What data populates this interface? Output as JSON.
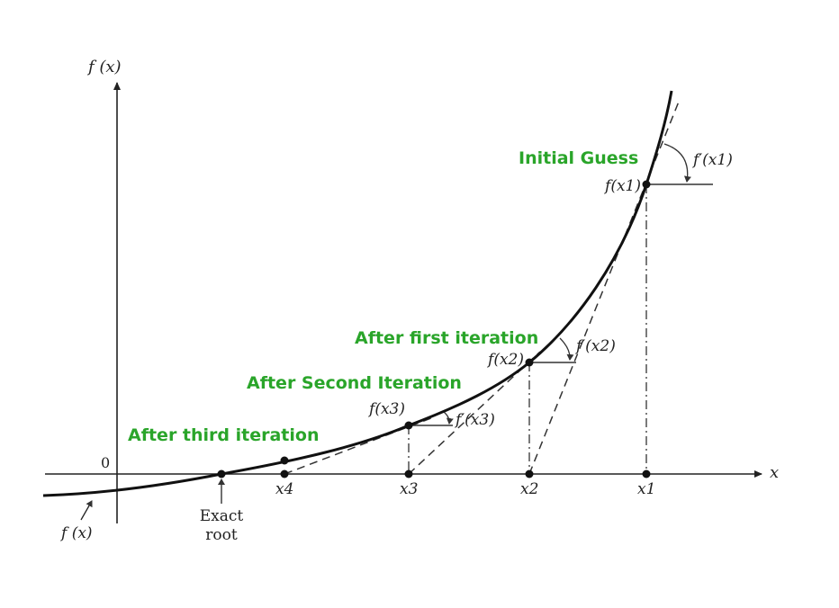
{
  "axes": {
    "y_label": "f (x)",
    "x_label": "x",
    "origin_label": "0"
  },
  "curve_label": "f (x)",
  "root_label": {
    "line1": "Exact",
    "line2": "root"
  },
  "x_ticks": [
    "x4",
    "x3",
    "x2",
    "x1"
  ],
  "points": [
    {
      "point_label": "f(x1)",
      "slope_label": "f′(x1)"
    },
    {
      "point_label": "f(x2)",
      "slope_label": "f′(x2)"
    },
    {
      "point_label": "f(x3)",
      "slope_label": "f′(x3)"
    }
  ],
  "annotations": {
    "initial": "Initial Guess",
    "first": "After first iteration",
    "second": "After Second Iteration",
    "third": "After third iteration"
  },
  "colors": {
    "annotation": "#2aa52a",
    "ink": "#222222"
  }
}
